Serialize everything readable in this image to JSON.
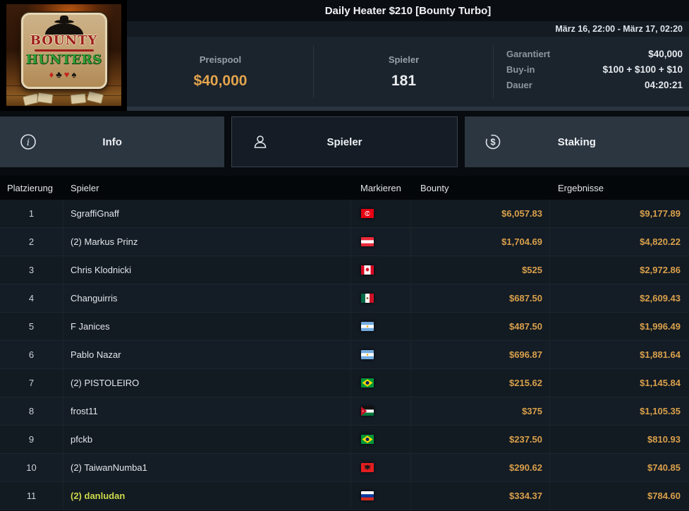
{
  "header": {
    "title": "Daily Heater $210 [Bounty Turbo]",
    "schedule": "März 16, 22:00 - März 17, 02:20"
  },
  "logo": {
    "word1": "BOUNTY",
    "word2": "HUNTERS",
    "suits": [
      "diamond",
      "club",
      "heart",
      "spade"
    ]
  },
  "stats": {
    "prizepool": {
      "label": "Preispool",
      "value": "$40,000"
    },
    "players": {
      "label": "Spieler",
      "value": "181"
    },
    "details": [
      {
        "label": "Garantiert",
        "value": "$40,000"
      },
      {
        "label": "Buy-in",
        "value": "$100 + $100 + $10"
      },
      {
        "label": "Dauer",
        "value": "04:20:21"
      }
    ]
  },
  "tabs": [
    {
      "id": "info",
      "label": "Info",
      "icon": "info-icon",
      "active": false
    },
    {
      "id": "spieler",
      "label": "Spieler",
      "icon": "players-icon",
      "active": true
    },
    {
      "id": "staking",
      "label": "Staking",
      "icon": "staking-icon",
      "active": false
    }
  ],
  "table": {
    "columns": [
      "Platzierung",
      "Spieler",
      "Markieren",
      "Bounty",
      "Ergebnisse"
    ],
    "rows": [
      {
        "rank": "1",
        "player": "SgraffiGnaff",
        "country": "tunisia",
        "bounty": "$6,057.83",
        "result": "$9,177.89",
        "highlight": false
      },
      {
        "rank": "2",
        "player": "(2) Markus Prinz",
        "country": "austria",
        "bounty": "$1,704.69",
        "result": "$4,820.22",
        "highlight": false
      },
      {
        "rank": "3",
        "player": "Chris Klodnicki",
        "country": "canada",
        "bounty": "$525",
        "result": "$2,972.86",
        "highlight": false
      },
      {
        "rank": "4",
        "player": "Changuirris",
        "country": "mexico",
        "bounty": "$687.50",
        "result": "$2,609.43",
        "highlight": false
      },
      {
        "rank": "5",
        "player": "F Janices",
        "country": "argentina",
        "bounty": "$487.50",
        "result": "$1,996.49",
        "highlight": false
      },
      {
        "rank": "6",
        "player": "Pablo Nazar",
        "country": "argentina",
        "bounty": "$696.87",
        "result": "$1,881.64",
        "highlight": false
      },
      {
        "rank": "7",
        "player": "(2) PISTOLEIRO",
        "country": "brazil",
        "bounty": "$215.62",
        "result": "$1,145.84",
        "highlight": false
      },
      {
        "rank": "8",
        "player": "frost11",
        "country": "jordan",
        "bounty": "$375",
        "result": "$1,105.35",
        "highlight": false
      },
      {
        "rank": "9",
        "player": "pfckb",
        "country": "brazil",
        "bounty": "$237.50",
        "result": "$810.93",
        "highlight": false
      },
      {
        "rank": "10",
        "player": "(2) TaiwanNumba1",
        "country": "albania",
        "bounty": "$290.62",
        "result": "$740.85",
        "highlight": false
      },
      {
        "rank": "11",
        "player": "(2) danludan",
        "country": "russia",
        "bounty": "$334.37",
        "result": "$784.60",
        "highlight": true
      }
    ]
  },
  "colors": {
    "money_gold": "#d9a04b",
    "highlight_player": "#cdda4a",
    "stats_background": "#1b232d",
    "row_background": "#121a22",
    "tab_inactive": "#2c3641",
    "tab_active": "#151c25"
  }
}
